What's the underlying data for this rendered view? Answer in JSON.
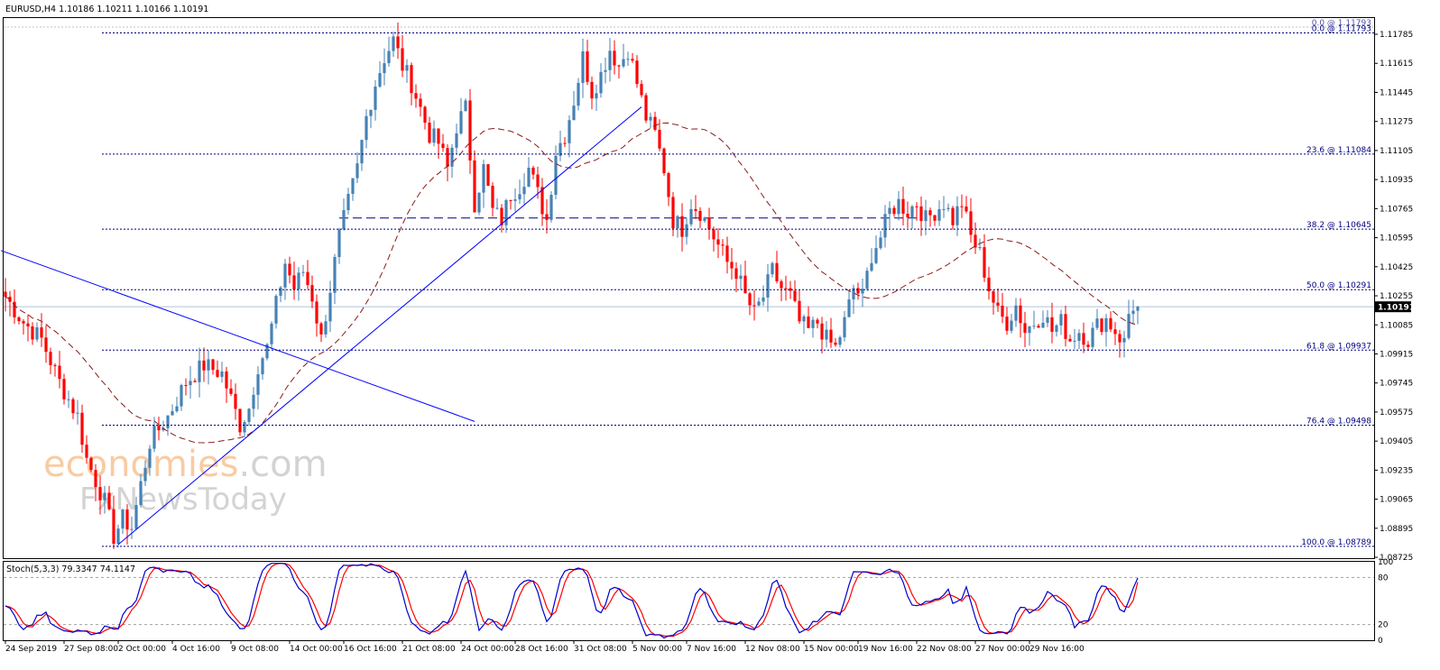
{
  "header": {
    "title": "EURUSD,H4  1.10186 1.10211 1.10166 1.10191",
    "stoch_label": "Stoch(5,3,3) 79.3347 74.1147"
  },
  "price_badge": "1.10191",
  "watermark": {
    "line1_a": "economies",
    "line1_b": ".com",
    "line2": "FxNewsToday"
  },
  "colors": {
    "bull": "#4682b4",
    "bear": "#ff0000",
    "ma": "#8b1a1a",
    "fib": "#000080",
    "trend": "#0000ff",
    "stoch_main": "#0000cd",
    "stoch_signal": "#ff0000",
    "badge_bg": "#000000",
    "badge_fg": "#ffffff"
  },
  "chart_data": {
    "type": "candlestick",
    "symbol": "EURUSD",
    "timeframe": "H4",
    "ylim": [
      1.0872,
      1.1188
    ],
    "y_ticks": [
      "1.11785",
      "1.11615",
      "1.11445",
      "1.11275",
      "1.11105",
      "1.10935",
      "1.10765",
      "1.10595",
      "1.10425",
      "1.10255",
      "1.10085",
      "1.09915",
      "1.09745",
      "1.09575",
      "1.09405",
      "1.09235",
      "1.09065",
      "1.08895",
      "1.08725"
    ],
    "x_ticks": [
      "24 Sep 2019",
      "27 Sep 08:00",
      "2 Oct 00:00",
      "4 Oct 16:00",
      "9 Oct 08:00",
      "14 Oct 00:00",
      "16 Oct 16:00",
      "21 Oct 08:00",
      "24 Oct 00:00",
      "28 Oct 16:00",
      "31 Oct 08:00",
      "5 Nov 00:00",
      "7 Nov 16:00",
      "12 Nov 08:00",
      "15 Nov 00:00",
      "19 Nov 16:00",
      "22 Nov 08:00",
      "27 Nov 00:00",
      "29 Nov 16:00"
    ],
    "close_path": [
      [
        0,
        1.1025
      ],
      [
        4,
        1.101
      ],
      [
        8,
        1.1
      ],
      [
        12,
        1.0975
      ],
      [
        16,
        1.0955
      ],
      [
        18,
        1.093
      ],
      [
        22,
        1.0905
      ],
      [
        24,
        1.0885
      ],
      [
        26,
        1.0895
      ],
      [
        28,
        1.089
      ],
      [
        30,
        1.0915
      ],
      [
        32,
        1.094
      ],
      [
        36,
        1.0955
      ],
      [
        40,
        1.0975
      ],
      [
        44,
        1.0985
      ],
      [
        48,
        1.098
      ],
      [
        50,
        1.0965
      ],
      [
        52,
        1.095
      ],
      [
        54,
        1.096
      ],
      [
        56,
        1.0985
      ],
      [
        58,
        1.0995
      ],
      [
        60,
        1.102
      ],
      [
        62,
        1.1045
      ],
      [
        64,
        1.103
      ],
      [
        66,
        1.104
      ],
      [
        68,
        1.1025
      ],
      [
        70,
        1.1
      ],
      [
        72,
        1.103
      ],
      [
        74,
        1.106
      ],
      [
        76,
        1.108
      ],
      [
        78,
        1.11
      ],
      [
        80,
        1.113
      ],
      [
        82,
        1.115
      ],
      [
        84,
        1.1165
      ],
      [
        86,
        1.1175
      ],
      [
        88,
        1.116
      ],
      [
        90,
        1.115
      ],
      [
        92,
        1.1135
      ],
      [
        94,
        1.112
      ],
      [
        96,
        1.1115
      ],
      [
        98,
        1.11
      ],
      [
        100,
        1.1125
      ],
      [
        102,
        1.1135
      ],
      [
        104,
        1.108
      ],
      [
        106,
        1.11
      ],
      [
        108,
        1.1075
      ],
      [
        110,
        1.107
      ],
      [
        112,
        1.1085
      ],
      [
        114,
        1.109
      ],
      [
        116,
        1.11
      ],
      [
        118,
        1.1085
      ],
      [
        120,
        1.107
      ],
      [
        122,
        1.111
      ],
      [
        124,
        1.112
      ],
      [
        126,
        1.114
      ],
      [
        128,
        1.1165
      ],
      [
        130,
        1.1145
      ],
      [
        132,
        1.1155
      ],
      [
        134,
        1.117
      ],
      [
        136,
        1.116
      ],
      [
        138,
        1.117
      ],
      [
        140,
        1.115
      ],
      [
        142,
        1.113
      ],
      [
        144,
        1.112
      ],
      [
        146,
        1.11
      ],
      [
        148,
        1.107
      ],
      [
        150,
        1.1065
      ],
      [
        152,
        1.108
      ],
      [
        154,
        1.1075
      ],
      [
        156,
        1.1065
      ],
      [
        158,
        1.1055
      ],
      [
        160,
        1.1045
      ],
      [
        162,
        1.104
      ],
      [
        164,
        1.1025
      ],
      [
        166,
        1.1015
      ],
      [
        168,
        1.1025
      ],
      [
        170,
        1.104
      ],
      [
        172,
        1.103
      ],
      [
        174,
        1.1025
      ],
      [
        176,
        1.101
      ],
      [
        178,
        1.1005
      ],
      [
        180,
        1.101
      ],
      [
        182,
        1.1
      ],
      [
        184,
        1.0995
      ],
      [
        186,
        1.101
      ],
      [
        188,
        1.103
      ],
      [
        190,
        1.1025
      ],
      [
        192,
        1.105
      ],
      [
        194,
        1.106
      ],
      [
        196,
        1.1075
      ],
      [
        198,
        1.108
      ],
      [
        200,
        1.1075
      ],
      [
        202,
        1.108
      ],
      [
        204,
        1.107
      ],
      [
        206,
        1.1075
      ],
      [
        208,
        1.108
      ],
      [
        210,
        1.107
      ],
      [
        212,
        1.108
      ],
      [
        214,
        1.106
      ],
      [
        216,
        1.105
      ],
      [
        218,
        1.103
      ],
      [
        220,
        1.1015
      ],
      [
        222,
        1.101
      ],
      [
        224,
        1.102
      ],
      [
        226,
        1.1005
      ],
      [
        228,
        1.101
      ],
      [
        230,
        1.1015
      ],
      [
        232,
        1.1005
      ],
      [
        234,
        1.101
      ],
      [
        236,
        1.1
      ],
      [
        238,
        1.1005
      ],
      [
        240,
        1.1
      ],
      [
        242,
        1.1008
      ],
      [
        244,
        1.1012
      ],
      [
        246,
        1.1005
      ],
      [
        248,
        1.0998
      ],
      [
        249,
        1.1015
      ],
      [
        250,
        1.102
      ],
      [
        251,
        1.1019
      ]
    ],
    "ma_period": 34,
    "fibonacci": [
      {
        "level": "0.0",
        "price": 1.11793,
        "label": "0.0 @ 1.11793"
      },
      {
        "level": "23.6",
        "price": 1.11084,
        "label": "23.6 @ 1.11084"
      },
      {
        "level": "38.2",
        "price": 1.10645,
        "label": "38.2 @ 1.10645"
      },
      {
        "level": "50.0",
        "price": 1.10291,
        "label": "50.0 @ 1.10291"
      },
      {
        "level": "61.8",
        "price": 1.09937,
        "label": "61.8 @ 1.09937"
      },
      {
        "level": "76.4",
        "price": 1.09498,
        "label": "76.4 @ 1.09498"
      },
      {
        "level": "100.0",
        "price": 1.08789,
        "label": "100.0 @ 1.08789"
      }
    ],
    "top_fib_tag": "0.0 @ 1.11793",
    "horizontal_line": {
      "price": 1.1071
    },
    "trendlines": [
      {
        "from": [
          -1,
          1.1052
        ],
        "to": [
          104,
          1.0952
        ]
      },
      {
        "from": [
          25,
          1.088
        ],
        "to": [
          141,
          1.1136
        ]
      }
    ],
    "current_price": 1.10191,
    "stochastic": {
      "name": "Stoch(5,3,3)",
      "main": 79.3347,
      "signal": 74.1147,
      "levels": [
        20,
        80
      ],
      "ylim": [
        0,
        100
      ],
      "y_ticks": [
        "100",
        "80",
        "20",
        "0"
      ]
    }
  }
}
